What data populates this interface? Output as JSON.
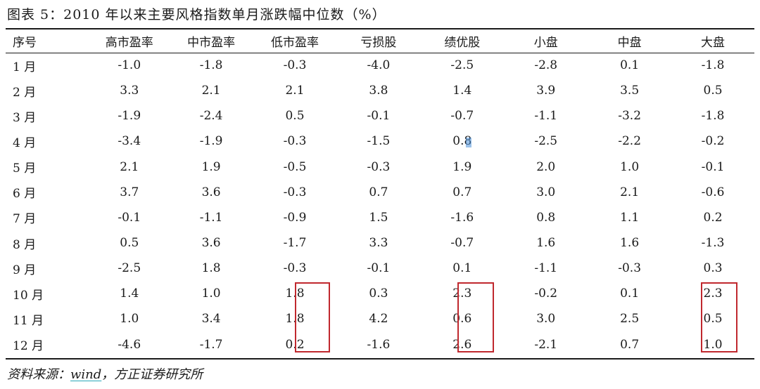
{
  "title": "图表 5：2010 年以来主要风格指数单月涨跌幅中位数（%）",
  "columns": [
    "序号",
    "高市盈率",
    "中市盈率",
    "低市盈率",
    "亏损股",
    "绩优股",
    "小盘",
    "中盘",
    "大盘"
  ],
  "rows": [
    [
      "1 月",
      "-1.0",
      "-1.8",
      "-0.3",
      "-4.0",
      "-2.5",
      "-2.8",
      "0.1",
      "-1.8"
    ],
    [
      "2 月",
      "3.3",
      "2.1",
      "2.1",
      "3.8",
      "1.4",
      "3.9",
      "3.5",
      "0.5"
    ],
    [
      "3 月",
      "-1.9",
      "-2.4",
      "0.5",
      "-0.1",
      "-0.7",
      "-1.1",
      "-3.2",
      "-1.8"
    ],
    [
      "4 月",
      "-3.4",
      "-1.9",
      "-0.3",
      "-1.5",
      "0.8",
      "-2.5",
      "-2.2",
      "-0.2"
    ],
    [
      "5 月",
      "2.1",
      "1.9",
      "-0.5",
      "-0.3",
      "1.9",
      "2.0",
      "1.0",
      "-0.1"
    ],
    [
      "6 月",
      "3.7",
      "3.6",
      "-0.3",
      "0.7",
      "0.7",
      "3.0",
      "2.1",
      "-0.6"
    ],
    [
      "7 月",
      "-0.1",
      "-1.1",
      "-0.9",
      "1.5",
      "-1.6",
      "0.8",
      "1.1",
      "0.2"
    ],
    [
      "8 月",
      "0.5",
      "3.6",
      "-1.7",
      "3.3",
      "-0.7",
      "1.6",
      "1.6",
      "-1.3"
    ],
    [
      "9 月",
      "-2.5",
      "1.8",
      "-0.3",
      "-0.1",
      "0.1",
      "-1.1",
      "-0.3",
      "0.3"
    ],
    [
      "10 月",
      "1.4",
      "1.0",
      "1.8",
      "0.3",
      "2.3",
      "-0.2",
      "0.1",
      "2.3"
    ],
    [
      "11 月",
      "1.0",
      "3.4",
      "1.8",
      "4.2",
      "0.6",
      "3.0",
      "2.5",
      "0.5"
    ],
    [
      "12 月",
      "-4.6",
      "-1.7",
      "0.2",
      "-1.6",
      "2.6",
      "-2.1",
      "0.7",
      "1.0"
    ]
  ],
  "source": {
    "prefix": "资料来源：",
    "link": "wind",
    "suffix": "，方正证券研究所"
  },
  "highlight_color": "#c0282e"
}
